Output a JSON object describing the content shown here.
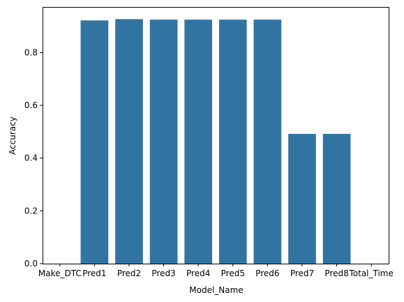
{
  "chart_data": {
    "type": "bar",
    "categories": [
      "Make_DTC",
      "Pred1",
      "Pred2",
      "Pred3",
      "Pred4",
      "Pred5",
      "Pred6",
      "Pred7",
      "Pred8",
      "Total_Time"
    ],
    "values": [
      0,
      0.922,
      0.927,
      0.925,
      0.925,
      0.925,
      0.925,
      0.492,
      0.492,
      0
    ],
    "title": "",
    "xlabel": "Model_Name",
    "ylabel": "Accuracy",
    "ylim": [
      0,
      0.973
    ],
    "yticks": [
      0.0,
      0.2,
      0.4,
      0.6,
      0.8
    ],
    "ytick_labels": [
      "0.0",
      "0.2",
      "0.4",
      "0.6",
      "0.8"
    ],
    "bar_color": "#3274a1",
    "grid": false,
    "legend": "none"
  }
}
